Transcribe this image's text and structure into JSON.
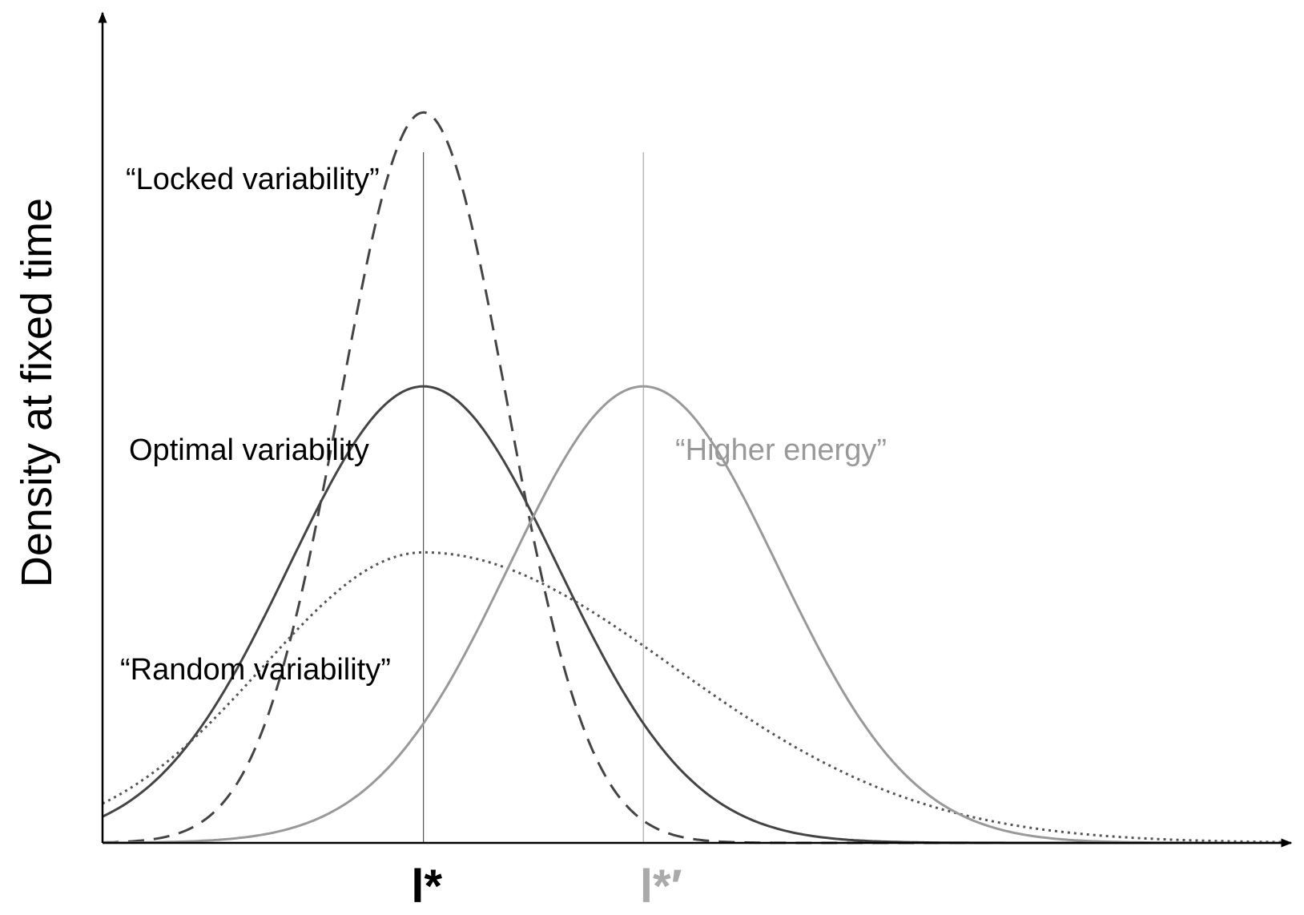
{
  "y_axis_label": "Density at fixed time",
  "labels": {
    "locked": "“Locked variability”",
    "optimal": "Optimal variability",
    "random": "“Random variability”",
    "higher": "“Higher energy”"
  },
  "markers": {
    "optimum": "l*",
    "optimum_shifted": "l*′"
  },
  "colors": {
    "dark": "#444444",
    "grey": "#999999",
    "axis": "#000000",
    "marker_shifted": "#aaaaaa"
  },
  "chart_data": {
    "type": "line",
    "title": "",
    "xlabel": "",
    "ylabel": "Density at fixed time",
    "x_ticks": [
      "l*",
      "l*′"
    ],
    "xlim": [
      0,
      10
    ],
    "ylim": [
      0,
      1
    ],
    "l_star": 2.7,
    "l_star_prime": 4.55,
    "series": [
      {
        "name": "Locked variability",
        "style": "dashed",
        "color": "#444444",
        "curve": "gaussian",
        "center": 2.7,
        "spread": 0.7,
        "peak": 0.88
      },
      {
        "name": "Optimal variability",
        "style": "solid",
        "color": "#444444",
        "curve": "gaussian",
        "center": 2.7,
        "spread": 1.13,
        "peak": 0.55
      },
      {
        "name": "Random variability",
        "style": "dotted",
        "color": "#555555",
        "curve": "skewed",
        "center": 2.7,
        "spread_left": 1.35,
        "spread_right": 2.1,
        "peak": 0.35
      },
      {
        "name": "Higher energy",
        "style": "solid",
        "color": "#999999",
        "curve": "gaussian",
        "center": 4.55,
        "spread": 1.13,
        "peak": 0.55
      }
    ]
  }
}
